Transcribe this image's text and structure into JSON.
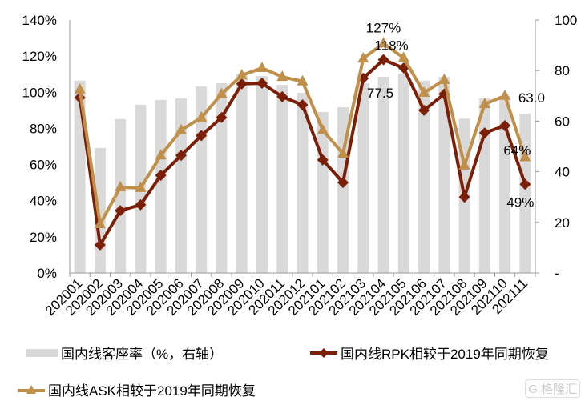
{
  "chart_data": {
    "type": "bar+line",
    "title": "",
    "categories": [
      "202001",
      "202002",
      "202003",
      "202004",
      "202005",
      "202006",
      "202007",
      "202008",
      "202009",
      "202010",
      "202011",
      "202012",
      "202101",
      "202102",
      "202103",
      "202104",
      "202105",
      "202106",
      "202107",
      "202108",
      "202109",
      "202110",
      "202111"
    ],
    "left_axis": {
      "ylim": [
        0,
        140
      ],
      "ticks": [
        "0%",
        "20%",
        "40%",
        "60%",
        "80%",
        "100%",
        "120%",
        "140%"
      ],
      "tick_values": [
        0,
        20,
        40,
        60,
        80,
        100,
        120,
        140
      ]
    },
    "right_axis": {
      "ylim": [
        0,
        100
      ],
      "ticks": [
        "-",
        "20",
        "40",
        "60",
        "80",
        "100"
      ],
      "tick_values": [
        0,
        20,
        40,
        60,
        80,
        100
      ]
    },
    "series": [
      {
        "name": "国内线客座率（%，右轴）",
        "type": "bar",
        "axis": "right",
        "color": "#d9d9d9",
        "values": [
          76,
          49.4,
          60.8,
          66.5,
          68.4,
          69,
          73.7,
          75,
          78.8,
          77.8,
          74.4,
          71.2,
          63.6,
          65.5,
          75,
          77.5,
          78.8,
          76,
          77.5,
          61,
          69,
          70,
          63.0
        ]
      },
      {
        "name": "国内线RPK相较于2019年同期恢复",
        "type": "line",
        "axis": "left",
        "marker": "diamond",
        "color": "#7b1f08",
        "values": [
          97,
          15.5,
          34.5,
          37.7,
          54,
          65,
          76,
          86,
          104.6,
          105,
          97.5,
          93,
          62.5,
          50,
          107.7,
          118,
          113.4,
          90,
          99,
          42,
          77.5,
          81.5,
          49
        ]
      },
      {
        "name": "国内线ASK相较于2019年同期恢复",
        "type": "line",
        "axis": "left",
        "marker": "triangle",
        "color": "#c0904a",
        "values": [
          101.5,
          27,
          47.4,
          47,
          65,
          79,
          86,
          99,
          109.4,
          113.4,
          108.5,
          106,
          79,
          66,
          118.7,
          127,
          119,
          99.7,
          106.8,
          59.4,
          93.5,
          98,
          64
        ]
      }
    ],
    "annotations": [
      {
        "text": "127%",
        "series": 2,
        "index": 15
      },
      {
        "text": "118%",
        "series": 1,
        "index": 15
      },
      {
        "text": "77.5",
        "series": 0,
        "index": 15
      },
      {
        "text": "63.0",
        "series": 0,
        "index": 22
      },
      {
        "text": "64%",
        "series": 2,
        "index": 22
      },
      {
        "text": "49%",
        "series": 1,
        "index": 22
      }
    ],
    "legend_position": "bottom",
    "grid": false
  },
  "watermark": "格隆汇"
}
